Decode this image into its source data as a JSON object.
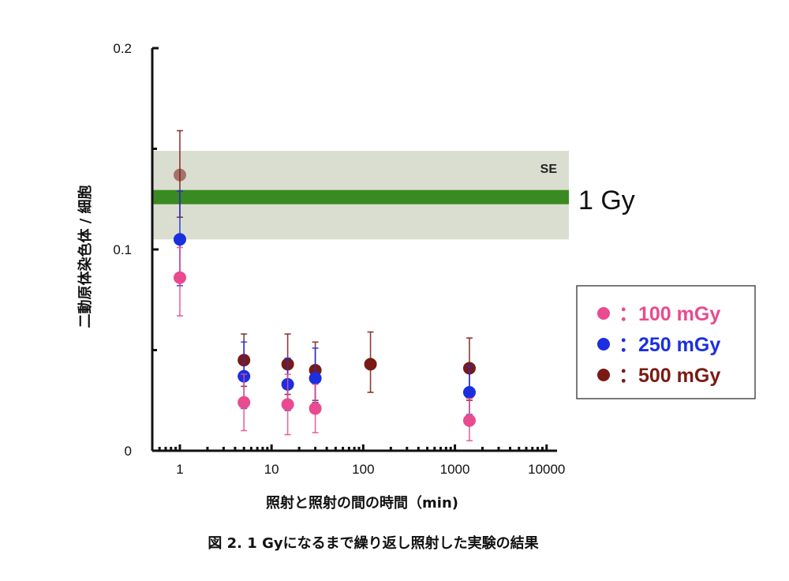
{
  "chart_data": {
    "type": "scatter",
    "title": "",
    "caption": "図 2. 1 Gyになるまで繰り返し照射した実験の結果",
    "xlabel": "照射と照射の間の時間（min)",
    "ylabel": "二動原体染色体 / 細胞",
    "x_scale": "log",
    "xlim": [
      0.5,
      13000
    ],
    "ylim": [
      0,
      0.2
    ],
    "x_ticks": [
      "1",
      "10",
      "100",
      "1000",
      "10000"
    ],
    "y_ticks": [
      "0",
      "0.1",
      "0.2"
    ],
    "grid": false,
    "legend_position": "right",
    "reference": {
      "label": "1 Gy",
      "value": 0.126,
      "se_label": "SE",
      "se_low": 0.105,
      "se_high": 0.149,
      "line_color": "#3a8a22",
      "band_color": "#d3d8c8"
    },
    "series": [
      {
        "name": "100 mGy",
        "legend_label": "：100 mGy",
        "color": "#ea4a8f",
        "points": [
          {
            "x": 1,
            "y": 0.086,
            "err_low": 0.067,
            "err_high": 0.101
          },
          {
            "x": 5,
            "y": 0.024,
            "err_low": 0.01,
            "err_high": 0.038
          },
          {
            "x": 15,
            "y": 0.023,
            "err_low": 0.008,
            "err_high": 0.038
          },
          {
            "x": 30,
            "y": 0.021,
            "err_low": 0.009,
            "err_high": 0.033
          },
          {
            "x": 1440,
            "y": 0.015,
            "err_low": 0.005,
            "err_high": 0.026
          }
        ]
      },
      {
        "name": "250 mGy",
        "legend_label": "：250 mGy",
        "color": "#1b2fe0",
        "points": [
          {
            "x": 1,
            "y": 0.105,
            "err_low": 0.082,
            "err_high": 0.129
          },
          {
            "x": 5,
            "y": 0.037,
            "err_low": 0.021,
            "err_high": 0.054
          },
          {
            "x": 15,
            "y": 0.033,
            "err_low": 0.02,
            "err_high": 0.046
          },
          {
            "x": 30,
            "y": 0.036,
            "err_low": 0.024,
            "err_high": 0.051
          },
          {
            "x": 1440,
            "y": 0.029,
            "err_low": 0.018,
            "err_high": 0.042
          }
        ]
      },
      {
        "name": "500 mGy",
        "legend_label": "：500 mGy",
        "color": "#7a1a14",
        "points": [
          {
            "x": 1,
            "y": 0.137,
            "err_low": 0.116,
            "err_high": 0.159
          },
          {
            "x": 5,
            "y": 0.045,
            "err_low": 0.032,
            "err_high": 0.058
          },
          {
            "x": 15,
            "y": 0.043,
            "err_low": 0.028,
            "err_high": 0.058
          },
          {
            "x": 30,
            "y": 0.04,
            "err_low": 0.025,
            "err_high": 0.054
          },
          {
            "x": 120,
            "y": 0.043,
            "err_low": 0.029,
            "err_high": 0.059
          },
          {
            "x": 1440,
            "y": 0.041,
            "err_low": 0.025,
            "err_high": 0.056
          }
        ]
      }
    ]
  }
}
